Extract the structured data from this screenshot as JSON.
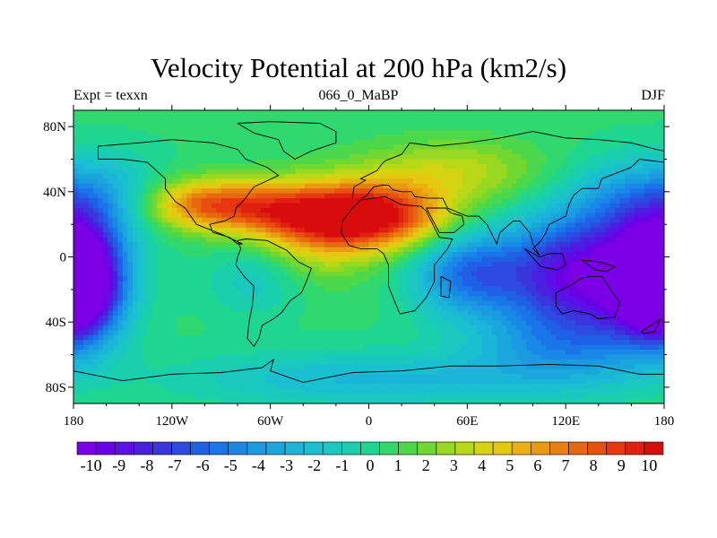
{
  "title": "Velocity Potential at 200 hPa (km2/s)",
  "left_label": "Expt = texxn",
  "center_label": "066_0_MaBP",
  "right_label": "DJF",
  "chart_data": {
    "type": "heatmap",
    "title": "Velocity Potential at 200 hPa (km2/s)",
    "xlim": [
      -180,
      180
    ],
    "ylim": [
      -90,
      90
    ],
    "x_ticks": [
      {
        "value": -180,
        "label": "180"
      },
      {
        "value": -120,
        "label": "120W"
      },
      {
        "value": -60,
        "label": "60W"
      },
      {
        "value": 0,
        "label": "0"
      },
      {
        "value": 60,
        "label": "60E"
      },
      {
        "value": 120,
        "label": "120E"
      },
      {
        "value": 180,
        "label": "180"
      }
    ],
    "y_ticks": [
      {
        "value": 80,
        "label": "80N"
      },
      {
        "value": 40,
        "label": "40N"
      },
      {
        "value": 0,
        "label": "0"
      },
      {
        "value": -40,
        "label": "40S"
      },
      {
        "value": -80,
        "label": "80S"
      }
    ],
    "colorbar_levels": [
      -10.5,
      -10,
      -9.5,
      -9,
      -8.5,
      -8,
      -7.5,
      -7,
      -6.5,
      -6,
      -5.5,
      -5,
      -4.5,
      -4,
      -3.5,
      -3,
      -2.5,
      -2,
      -1.5,
      -1,
      -0.5,
      0,
      0.5,
      1,
      1.5,
      2,
      2.5,
      3,
      3.5,
      4,
      4.5,
      5,
      5.5,
      6,
      6.5,
      7,
      7.5,
      8,
      8.5,
      9,
      9.5,
      10,
      10.5
    ],
    "colorbar_labels": [
      "-10",
      "-9",
      "-8",
      "-7",
      "-6",
      "-5",
      "-4",
      "-3",
      "-2",
      "-1",
      "0",
      "1",
      "2",
      "3",
      "4",
      "5",
      "6",
      "7",
      "8",
      "9",
      "10"
    ],
    "colormap": [
      "#7b00e6",
      "#6a00e6",
      "#5a10e6",
      "#4a20e0",
      "#3a35dd",
      "#2d4be0",
      "#2060e6",
      "#1a75e8",
      "#1a88e6",
      "#1a9ae0",
      "#1aa8dc",
      "#1ab5d8",
      "#1ac0d0",
      "#1ac8c0",
      "#1acfae",
      "#20d590",
      "#30d86e",
      "#4cd84a",
      "#70d830",
      "#98d820",
      "#b8d818",
      "#d4d410",
      "#e6c810",
      "#e8b010",
      "#e89a10",
      "#e88010",
      "#e86810",
      "#e85010",
      "#e63810",
      "#e02010",
      "#d80c0c"
    ],
    "features": [
      {
        "lon": 0,
        "lat": 25,
        "amp": 10.2,
        "sx": 32,
        "sy": 14
      },
      {
        "lon": -100,
        "lat": 32,
        "amp": 7.0,
        "sx": 28,
        "sy": 11
      },
      {
        "lon": -55,
        "lat": 28,
        "amp": 4.5,
        "sx": 25,
        "sy": 12
      },
      {
        "lon": -30,
        "lat": 15,
        "amp": 3.0,
        "sx": 25,
        "sy": 20
      },
      {
        "lon": 50,
        "lat": 52,
        "amp": 3.0,
        "sx": 40,
        "sy": 14
      },
      {
        "lon": 130,
        "lat": -10,
        "amp": -10.0,
        "sx": 34,
        "sy": 24
      },
      {
        "lon": 60,
        "lat": -10,
        "amp": -5.5,
        "sx": 24,
        "sy": 18
      },
      {
        "lon": -180,
        "lat": -15,
        "amp": -8.5,
        "sx": 20,
        "sy": 24
      },
      {
        "lon": 180,
        "lat": -15,
        "amp": -8.5,
        "sx": 20,
        "sy": 24
      },
      {
        "lon": 120,
        "lat": -55,
        "amp": -4.0,
        "sx": 40,
        "sy": 18
      },
      {
        "lon": -160,
        "lat": 35,
        "amp": -3.0,
        "sx": 28,
        "sy": 18
      },
      {
        "lon": 160,
        "lat": 35,
        "amp": -3.5,
        "sx": 30,
        "sy": 18
      },
      {
        "lon": -70,
        "lat": -15,
        "amp": -2.0,
        "sx": 20,
        "sy": 15
      },
      {
        "lon": 0,
        "lat": -75,
        "amp": -3.0,
        "sx": 80,
        "sy": 12
      }
    ],
    "coastlines": [
      [
        [
          -165,
          68
        ],
        [
          -140,
          70
        ],
        [
          -120,
          72
        ],
        [
          -95,
          70
        ],
        [
          -80,
          66
        ],
        [
          -75,
          60
        ],
        [
          -62,
          55
        ],
        [
          -55,
          50
        ],
        [
          -70,
          43
        ],
        [
          -76,
          35
        ],
        [
          -81,
          30
        ],
        [
          -82,
          25
        ],
        [
          -88,
          22
        ],
        [
          -97,
          20
        ],
        [
          -95,
          15
        ],
        [
          -85,
          12
        ],
        [
          -80,
          8
        ],
        [
          -77,
          8
        ],
        [
          -90,
          14
        ],
        [
          -105,
          20
        ],
        [
          -112,
          30
        ],
        [
          -118,
          34
        ],
        [
          -124,
          42
        ],
        [
          -124,
          48
        ],
        [
          -135,
          58
        ],
        [
          -150,
          60
        ],
        [
          -165,
          60
        ],
        [
          -165,
          68
        ]
      ],
      [
        [
          -80,
          10
        ],
        [
          -75,
          11
        ],
        [
          -62,
          10
        ],
        [
          -50,
          4
        ],
        [
          -43,
          -3
        ],
        [
          -35,
          -7
        ],
        [
          -38,
          -15
        ],
        [
          -41,
          -22
        ],
        [
          -48,
          -27
        ],
        [
          -53,
          -34
        ],
        [
          -58,
          -38
        ],
        [
          -65,
          -42
        ],
        [
          -67,
          -50
        ],
        [
          -70,
          -55
        ],
        [
          -74,
          -50
        ],
        [
          -73,
          -40
        ],
        [
          -71,
          -30
        ],
        [
          -70,
          -18
        ],
        [
          -76,
          -12
        ],
        [
          -81,
          -5
        ],
        [
          -80,
          0
        ],
        [
          -78,
          5
        ],
        [
          -80,
          10
        ]
      ],
      [
        [
          -17,
          15
        ],
        [
          -16,
          22
        ],
        [
          -10,
          30
        ],
        [
          -5,
          35
        ],
        [
          10,
          37
        ],
        [
          20,
          32
        ],
        [
          32,
          31
        ],
        [
          35,
          28
        ],
        [
          43,
          12
        ],
        [
          51,
          11
        ],
        [
          48,
          5
        ],
        [
          40,
          -5
        ],
        [
          40,
          -15
        ],
        [
          35,
          -25
        ],
        [
          28,
          -33
        ],
        [
          19,
          -35
        ],
        [
          16,
          -28
        ],
        [
          12,
          -18
        ],
        [
          12,
          -5
        ],
        [
          9,
          2
        ],
        [
          5,
          5
        ],
        [
          -5,
          5
        ],
        [
          -12,
          7
        ],
        [
          -17,
          15
        ]
      ],
      [
        [
          -10,
          36
        ],
        [
          -9,
          43
        ],
        [
          -2,
          47
        ],
        [
          -5,
          48
        ],
        [
          5,
          53
        ],
        [
          8,
          57
        ],
        [
          10,
          59
        ],
        [
          20,
          63
        ],
        [
          25,
          70
        ],
        [
          40,
          68
        ],
        [
          60,
          70
        ],
        [
          80,
          73
        ],
        [
          100,
          77
        ],
        [
          120,
          73
        ],
        [
          140,
          72
        ],
        [
          160,
          70
        ],
        [
          175,
          66
        ],
        [
          180,
          65
        ]
      ],
      [
        [
          180,
          58
        ],
        [
          165,
          60
        ],
        [
          160,
          55
        ],
        [
          142,
          48
        ],
        [
          140,
          42
        ],
        [
          130,
          42
        ],
        [
          125,
          38
        ],
        [
          122,
          32
        ],
        [
          120,
          25
        ],
        [
          110,
          20
        ],
        [
          108,
          15
        ],
        [
          105,
          10
        ],
        [
          100,
          5
        ],
        [
          104,
          1
        ],
        [
          100,
          8
        ],
        [
          98,
          15
        ],
        [
          92,
          22
        ],
        [
          88,
          22
        ],
        [
          80,
          15
        ],
        [
          78,
          8
        ],
        [
          72,
          20
        ],
        [
          67,
          25
        ],
        [
          60,
          25
        ],
        [
          55,
          27
        ],
        [
          48,
          30
        ],
        [
          45,
          36
        ],
        [
          36,
          36
        ],
        [
          28,
          37
        ],
        [
          26,
          40
        ],
        [
          20,
          40
        ],
        [
          15,
          41
        ],
        [
          12,
          44
        ],
        [
          8,
          44
        ],
        [
          3,
          43
        ],
        [
          -2,
          37
        ],
        [
          -5,
          36
        ]
      ],
      [
        [
          35,
          30
        ],
        [
          43,
          15
        ],
        [
          52,
          15
        ],
        [
          58,
          20
        ],
        [
          57,
          25
        ],
        [
          50,
          27
        ],
        [
          47,
          30
        ],
        [
          35,
          30
        ]
      ],
      [
        [
          114,
          -22
        ],
        [
          114,
          -30
        ],
        [
          118,
          -35
        ],
        [
          125,
          -33
        ],
        [
          135,
          -35
        ],
        [
          140,
          -38
        ],
        [
          150,
          -37
        ],
        [
          153,
          -28
        ],
        [
          146,
          -18
        ],
        [
          142,
          -12
        ],
        [
          136,
          -12
        ],
        [
          130,
          -13
        ],
        [
          122,
          -18
        ],
        [
          114,
          -22
        ]
      ],
      [
        [
          95,
          5
        ],
        [
          105,
          -6
        ],
        [
          115,
          -8
        ],
        [
          120,
          -5
        ],
        [
          118,
          2
        ],
        [
          110,
          2
        ],
        [
          104,
          0
        ],
        [
          95,
          5
        ]
      ],
      [
        [
          130,
          -2
        ],
        [
          140,
          -3
        ],
        [
          150,
          -6
        ],
        [
          145,
          -9
        ],
        [
          138,
          -8
        ],
        [
          130,
          -2
        ]
      ],
      [
        [
          44,
          -12
        ],
        [
          50,
          -15
        ],
        [
          49,
          -25
        ],
        [
          44,
          -24
        ],
        [
          44,
          -12
        ]
      ],
      [
        [
          -180,
          -70
        ],
        [
          -150,
          -76
        ],
        [
          -120,
          -72
        ],
        [
          -90,
          -71
        ],
        [
          -65,
          -68
        ],
        [
          -58,
          -63
        ],
        [
          -60,
          -70
        ],
        [
          -40,
          -77
        ],
        [
          -10,
          -71
        ],
        [
          20,
          -70
        ],
        [
          50,
          -67
        ],
        [
          80,
          -67
        ],
        [
          110,
          -66
        ],
        [
          140,
          -67
        ],
        [
          165,
          -72
        ],
        [
          180,
          -72
        ]
      ],
      [
        [
          166,
          -46
        ],
        [
          172,
          -42
        ],
        [
          178,
          -38
        ],
        [
          174,
          -46
        ],
        [
          168,
          -47
        ],
        [
          166,
          -46
        ]
      ],
      [
        [
          -80,
          82
        ],
        [
          -60,
          83
        ],
        [
          -30,
          82
        ],
        [
          -20,
          77
        ],
        [
          -20,
          70
        ],
        [
          -35,
          65
        ],
        [
          -45,
          60
        ],
        [
          -52,
          65
        ],
        [
          -55,
          72
        ],
        [
          -70,
          76
        ],
        [
          -80,
          82
        ]
      ]
    ]
  }
}
